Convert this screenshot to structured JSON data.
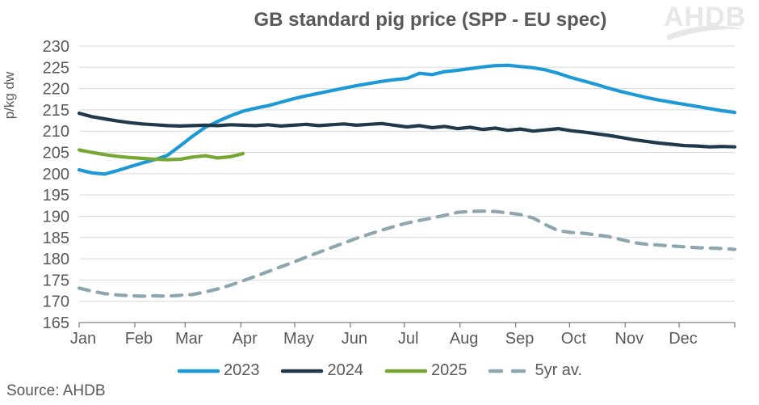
{
  "title": "GB standard pig price (SPP - EU spec)",
  "logo": {
    "text": "AHDB"
  },
  "source": "Source: AHDB",
  "colors": {
    "text": "#595959",
    "gridline": "#d9d9d9",
    "axis": "#808080",
    "logo": "#e7e7e7"
  },
  "chart_data": {
    "type": "line",
    "title": "GB standard pig price (SPP - EU spec)",
    "xlabel": "",
    "ylabel": "p/kg dw",
    "ylim": [
      165,
      230
    ],
    "y_tick_step": 5,
    "grid": "horizontal",
    "legend_position": "bottom",
    "x_unit": "week-of-year",
    "x_range_weeks": 52,
    "x_tick_labels": [
      "Jan",
      "Feb",
      "Mar",
      "Apr",
      "May",
      "Jun",
      "Jul",
      "Aug",
      "Sep",
      "Oct",
      "Nov",
      "Dec"
    ],
    "series": [
      {
        "name": "2023",
        "color": "#1d9ad6",
        "style": "solid",
        "values": [
          200.9,
          200.2,
          199.9,
          200.7,
          201.6,
          202.5,
          203.3,
          204.3,
          206.5,
          208.8,
          210.9,
          212.3,
          213.6,
          214.7,
          215.4,
          216.0,
          216.8,
          217.6,
          218.3,
          218.9,
          219.5,
          220.1,
          220.7,
          221.2,
          221.7,
          222.1,
          222.4,
          223.6,
          223.3,
          224.0,
          224.3,
          224.7,
          225.1,
          225.4,
          225.5,
          225.2,
          224.9,
          224.4,
          223.6,
          222.6,
          221.8,
          221.0,
          220.1,
          219.3,
          218.6,
          217.9,
          217.3,
          216.8,
          216.3,
          215.8,
          215.3,
          214.8,
          214.4
        ]
      },
      {
        "name": "2024",
        "color": "#203a4c",
        "style": "solid",
        "values": [
          214.2,
          213.4,
          212.9,
          212.4,
          212.0,
          211.7,
          211.5,
          211.3,
          211.2,
          211.3,
          211.4,
          211.3,
          211.5,
          211.4,
          211.3,
          211.5,
          211.2,
          211.4,
          211.6,
          211.3,
          211.5,
          211.7,
          211.4,
          211.6,
          211.8,
          211.4,
          211.0,
          211.3,
          210.8,
          211.1,
          210.6,
          210.9,
          210.4,
          210.7,
          210.2,
          210.5,
          210.0,
          210.3,
          210.6,
          210.1,
          209.8,
          209.4,
          209.0,
          208.5,
          208.0,
          207.6,
          207.2,
          206.9,
          206.6,
          206.5,
          206.3,
          206.4,
          206.3
        ]
      },
      {
        "name": "2025",
        "color": "#77a733",
        "style": "solid",
        "values": [
          205.6,
          205.0,
          204.5,
          204.1,
          203.8,
          203.6,
          203.4,
          203.3,
          203.4,
          203.9,
          204.2,
          203.7,
          204.0,
          204.7
        ]
      },
      {
        "name": "5yr av.",
        "color": "#8da6b0",
        "style": "dashed",
        "values": [
          173.1,
          172.4,
          171.8,
          171.5,
          171.3,
          171.2,
          171.3,
          171.2,
          171.4,
          171.6,
          172.2,
          172.9,
          173.8,
          174.8,
          175.9,
          177.0,
          178.1,
          179.2,
          180.4,
          181.5,
          182.6,
          183.7,
          184.8,
          185.8,
          186.7,
          187.6,
          188.4,
          189.0,
          189.6,
          190.2,
          190.9,
          191.1,
          191.2,
          191.1,
          190.8,
          190.4,
          189.6,
          188.0,
          186.6,
          186.2,
          186.0,
          185.6,
          185.2,
          184.5,
          183.8,
          183.4,
          183.2,
          183.0,
          182.8,
          182.6,
          182.5,
          182.4,
          182.2
        ]
      }
    ]
  }
}
